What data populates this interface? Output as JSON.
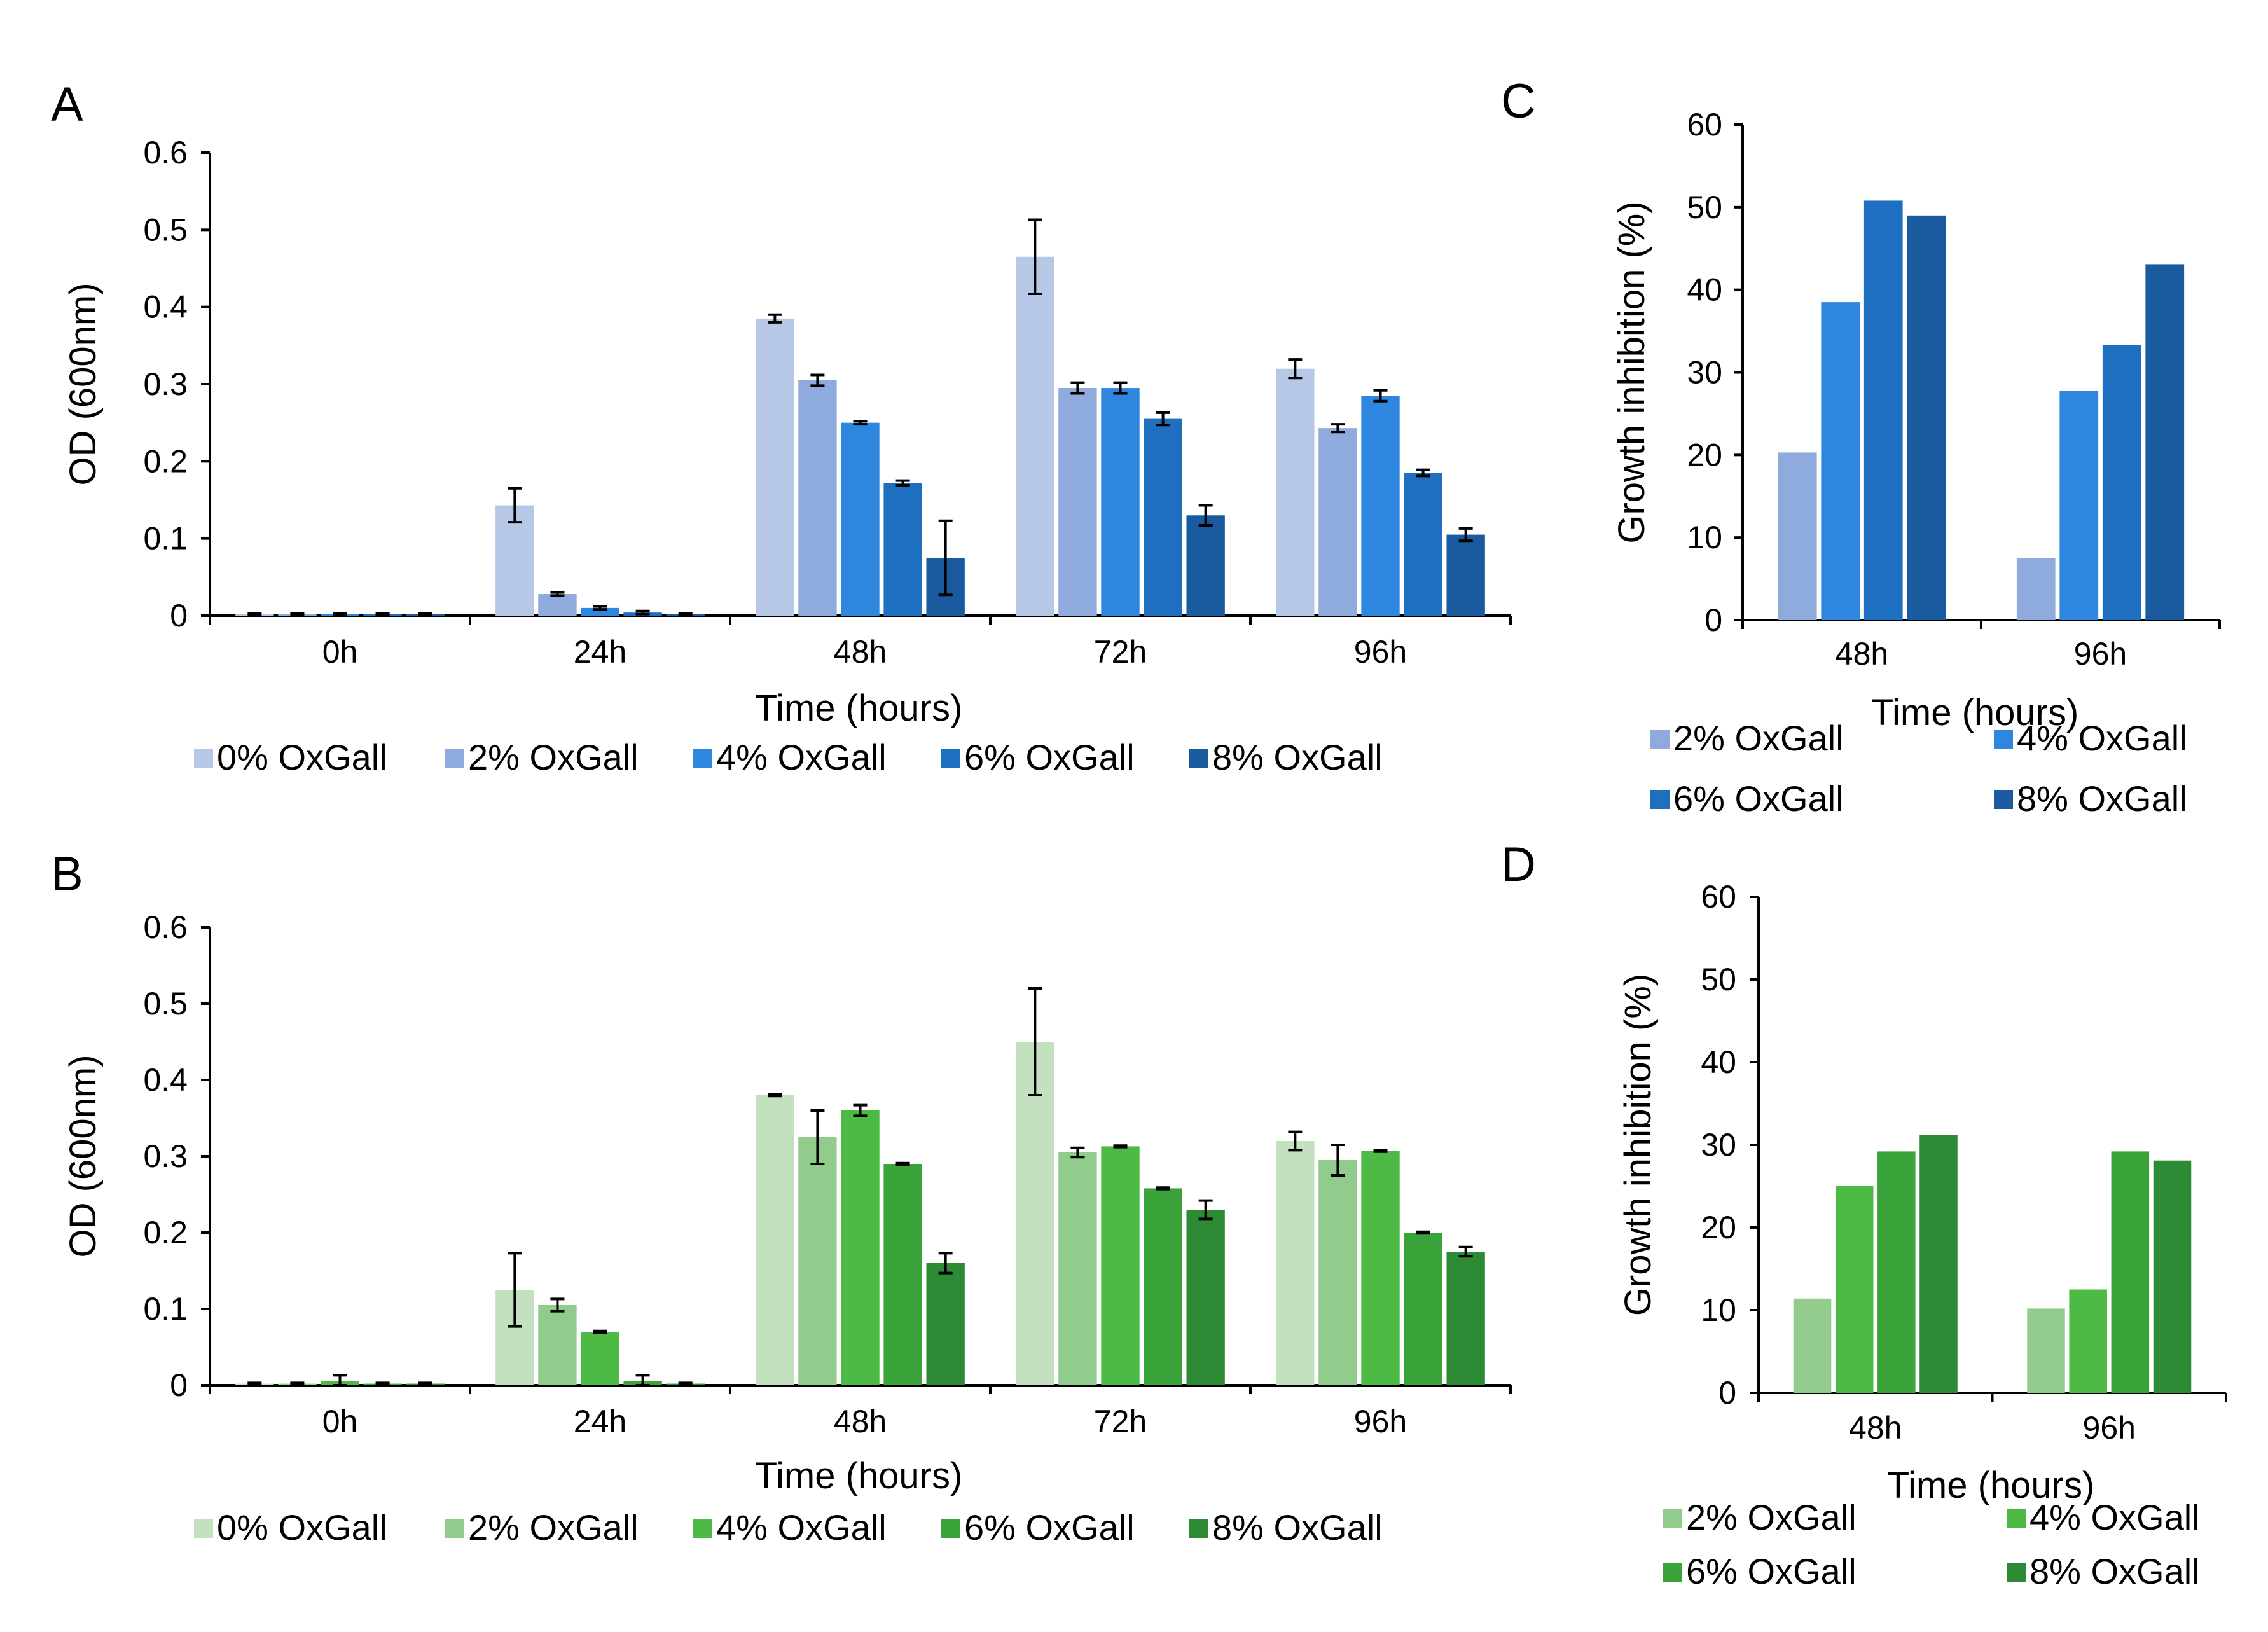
{
  "chart_data": [
    {
      "panel": "A",
      "type": "bar",
      "title": "",
      "xlabel": "Time (hours)",
      "ylabel": "OD (600nm)",
      "ylim": [
        0,
        0.6
      ],
      "yticks": [
        "0",
        "0.1",
        "0.2",
        "0.3",
        "0.4",
        "0.5",
        "0.6"
      ],
      "categories": [
        "0h",
        "24h",
        "48h",
        "72h",
        "96h"
      ],
      "series": [
        {
          "name": "0% OxGall",
          "color": "#b7c8e6",
          "values": [
            0.002,
            0.143,
            0.385,
            0.465,
            0.32
          ],
          "errors": [
            0.001,
            0.022,
            0.005,
            0.048,
            0.012
          ]
        },
        {
          "name": "2% OxGall",
          "color": "#8faadc",
          "values": [
            0.002,
            0.028,
            0.305,
            0.295,
            0.243
          ],
          "errors": [
            0.001,
            0.002,
            0.007,
            0.007,
            0.005
          ]
        },
        {
          "name": "4% OxGall",
          "color": "#2e86de",
          "values": [
            0.002,
            0.01,
            0.25,
            0.295,
            0.285
          ],
          "errors": [
            0.001,
            0.002,
            0.002,
            0.007,
            0.007
          ]
        },
        {
          "name": "6% OxGall",
          "color": "#1f6fc0",
          "values": [
            0.002,
            0.004,
            0.172,
            0.255,
            0.185
          ],
          "errors": [
            0.001,
            0.002,
            0.003,
            0.008,
            0.004
          ]
        },
        {
          "name": "8% OxGall",
          "color": "#1a5a9e",
          "values": [
            0.002,
            0.002,
            0.075,
            0.13,
            0.105
          ],
          "errors": [
            0.001,
            0.001,
            0.048,
            0.013,
            0.008
          ]
        }
      ],
      "legend_position": "bottom"
    },
    {
      "panel": "B",
      "type": "bar",
      "title": "",
      "xlabel": "Time (hours)",
      "ylabel": "OD (600nm)",
      "ylim": [
        0,
        0.6
      ],
      "yticks": [
        "0",
        "0.1",
        "0.2",
        "0.3",
        "0.4",
        "0.5",
        "0.6"
      ],
      "categories": [
        "0h",
        "24h",
        "48h",
        "72h",
        "96h"
      ],
      "series": [
        {
          "name": "0% OxGall",
          "color": "#c3e0bf",
          "values": [
            0.002,
            0.125,
            0.38,
            0.45,
            0.32
          ],
          "errors": [
            0.001,
            0.048,
            0.001,
            0.07,
            0.012
          ]
        },
        {
          "name": "2% OxGall",
          "color": "#92cc8d",
          "values": [
            0.002,
            0.105,
            0.325,
            0.305,
            0.295
          ],
          "errors": [
            0.001,
            0.008,
            0.035,
            0.006,
            0.02
          ]
        },
        {
          "name": "4% OxGall",
          "color": "#4cba45",
          "values": [
            0.005,
            0.07,
            0.36,
            0.313,
            0.307
          ],
          "errors": [
            0.008,
            0.001,
            0.007,
            0.001,
            0.001
          ]
        },
        {
          "name": "6% OxGall",
          "color": "#3aa33a",
          "values": [
            0.002,
            0.005,
            0.29,
            0.258,
            0.2
          ],
          "errors": [
            0.001,
            0.008,
            0.001,
            0.001,
            0.001
          ]
        },
        {
          "name": "8% OxGall",
          "color": "#2e8b35",
          "values": [
            0.002,
            0.002,
            0.16,
            0.23,
            0.175
          ],
          "errors": [
            0.001,
            0.001,
            0.013,
            0.012,
            0.006
          ]
        }
      ],
      "legend_position": "bottom"
    },
    {
      "panel": "C",
      "type": "bar",
      "title": "",
      "xlabel": "Time (hours)",
      "ylabel": "Growth inhibition (%)",
      "ylim": [
        0,
        60
      ],
      "yticks": [
        "0",
        "10",
        "20",
        "30",
        "40",
        "50",
        "60"
      ],
      "categories": [
        "48h",
        "96h"
      ],
      "series": [
        {
          "name": "2% OxGall",
          "color": "#8faadc",
          "values": [
            20.3,
            7.5
          ]
        },
        {
          "name": "4% OxGall",
          "color": "#2e86de",
          "values": [
            38.5,
            27.8
          ]
        },
        {
          "name": "6% OxGall",
          "color": "#1f6fc0",
          "values": [
            50.8,
            33.3
          ]
        },
        {
          "name": "8% OxGall",
          "color": "#1a5a9e",
          "values": [
            49.0,
            43.1
          ]
        }
      ],
      "legend_position": "bottom"
    },
    {
      "panel": "D",
      "type": "bar",
      "title": "",
      "xlabel": "Time (hours)",
      "ylabel": "Growth inhibition (%)",
      "ylim": [
        0,
        60
      ],
      "yticks": [
        "0",
        "10",
        "20",
        "30",
        "40",
        "50",
        "60"
      ],
      "categories": [
        "48h",
        "96h"
      ],
      "series": [
        {
          "name": "2% OxGall",
          "color": "#92cc8d",
          "values": [
            11.4,
            10.2
          ]
        },
        {
          "name": "4% OxGall",
          "color": "#4cba45",
          "values": [
            25.0,
            12.5
          ]
        },
        {
          "name": "6% OxGall",
          "color": "#3aa33a",
          "values": [
            29.2,
            29.2
          ]
        },
        {
          "name": "8% OxGall",
          "color": "#2e8b35",
          "values": [
            31.2,
            28.1
          ]
        }
      ],
      "legend_position": "bottom"
    }
  ]
}
